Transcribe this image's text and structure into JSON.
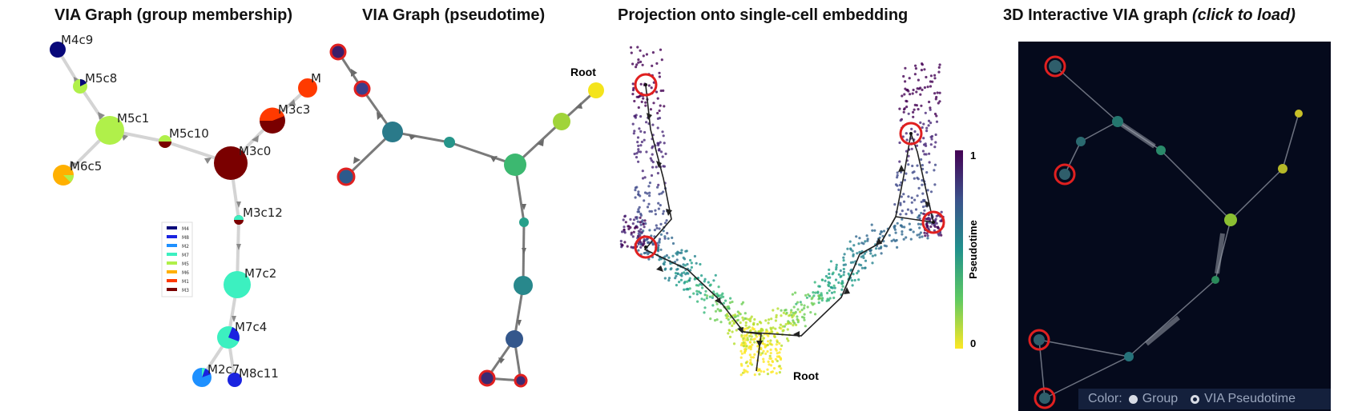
{
  "panels": {
    "p1": {
      "title": "VIA Graph (group membership)"
    },
    "p2": {
      "title": "VIA Graph (pseudotime)"
    },
    "p3": {
      "title": "Projection onto single-cell embedding"
    },
    "p4": {
      "title_main": "3D Interactive VIA graph ",
      "title_em": "(click to load)"
    }
  },
  "group_graph": {
    "node_labels": [
      "M4c9",
      "M5c8",
      "M5c1",
      "M5c10",
      "M6c5",
      "M3c0",
      "M3c3",
      "M",
      "M3c12",
      "M7c2",
      "M7c4",
      "M2c7",
      "M8c11"
    ],
    "legend": [
      {
        "label": "M4",
        "color": "#08087a"
      },
      {
        "label": "M8",
        "color": "#1a23e0"
      },
      {
        "label": "M2",
        "color": "#1e90ff"
      },
      {
        "label": "M7",
        "color": "#3cf0c0"
      },
      {
        "label": "M5",
        "color": "#b0f04a"
      },
      {
        "label": "M6",
        "color": "#ffb000"
      },
      {
        "label": "M1",
        "color": "#ff3a00"
      },
      {
        "label": "M3",
        "color": "#7a0000"
      }
    ]
  },
  "pseudotime_graph": {
    "root_label": "Root"
  },
  "embedding": {
    "root_label": "Root",
    "colorbar": {
      "label": "Pseudotime",
      "max_tick": "1",
      "min_tick": "0"
    }
  },
  "viewer3d": {
    "color_label": "Color:",
    "options": [
      {
        "label": "Group",
        "selected": false
      },
      {
        "label": "VIA Pseudotime",
        "selected": true
      }
    ]
  }
}
